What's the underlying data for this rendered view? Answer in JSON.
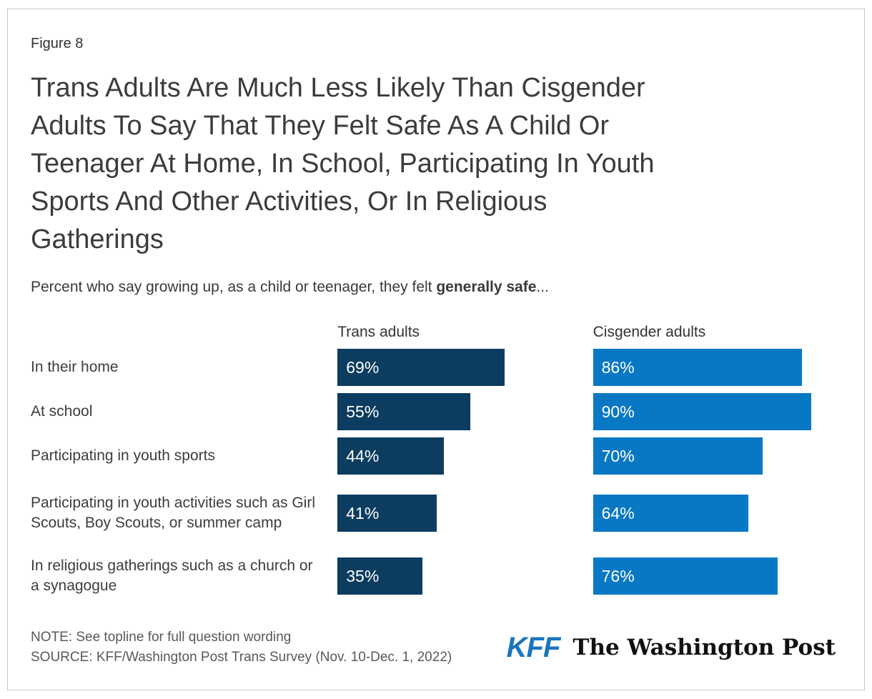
{
  "figure_label": "Figure 8",
  "header": {
    "title_lines": [
      "Trans Adults Are Much Less Likely Than Cisgender",
      "Adults To Say That They Felt Safe As A Child Or",
      "Teenager At Home, In School, Participating In Youth",
      "Sports And Other Activities, Or In Religious",
      "Gatherings"
    ],
    "subtitle_prefix": "Percent who say growing up, as a child or teenager, they felt ",
    "subtitle_bold": "generally safe",
    "subtitle_suffix": "..."
  },
  "chart_data": {
    "type": "bar",
    "orientation": "horizontal",
    "title": "Trans Adults Are Much Less Likely Than Cisgender Adults To Say That They Felt Safe As A Child Or Teenager At Home, In School, Participating In Youth Sports And Other Activities, Or In Religious Gatherings",
    "subtitle": "Percent who say growing up, as a child or teenager, they felt generally safe...",
    "xlim": [
      0,
      100
    ],
    "value_suffix": "%",
    "grid": false,
    "legend_position": "column-headers-above-bars",
    "bar_labels": "inside-left-white",
    "categories": [
      "In their home",
      "At school",
      "Participating in youth sports",
      "Participating in youth activities such as Girl Scouts, Boy Scouts, or summer camp",
      "In religious gatherings such as a church or a synagogue"
    ],
    "series": [
      {
        "name": "Trans adults",
        "color": "#0c3c5f",
        "values": [
          69,
          55,
          44,
          41,
          35
        ]
      },
      {
        "name": "Cisgender adults",
        "color": "#0878c4",
        "values": [
          86,
          90,
          70,
          64,
          76
        ]
      }
    ]
  },
  "footer": {
    "note": "NOTE: See topline for full question wording",
    "source": "SOURCE: KFF/Washington Post Trans Survey (Nov. 10-Dec. 1, 2022)",
    "logos": {
      "kff": "KFF",
      "washington_post": "The Washington Post"
    }
  },
  "colors": {
    "trans_bar": "#0c3c5f",
    "cis_bar": "#0878c4",
    "kff_logo": "#1b75bc",
    "title_text": "#3c3c3c",
    "muted_text": "#595959",
    "card_border": "#c9c9c9"
  }
}
